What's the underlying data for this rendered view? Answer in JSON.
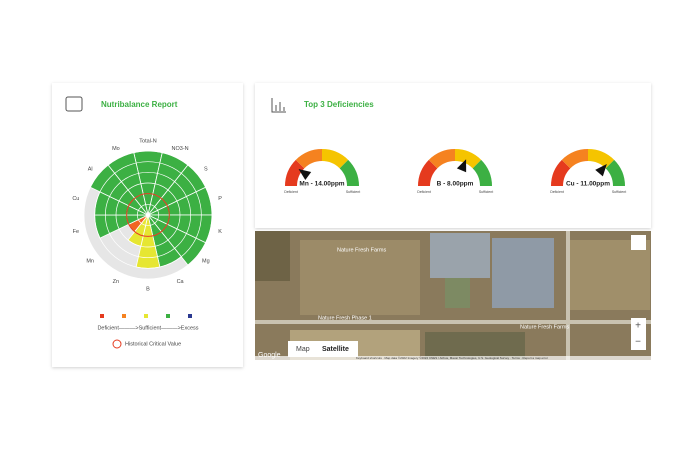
{
  "nutribalance": {
    "title": "Nutribalance Report",
    "rings": 6,
    "nutrients": [
      {
        "name": "Total-N",
        "level": 6,
        "color": "#3cb043"
      },
      {
        "name": "NO3-N",
        "level": 6,
        "color": "#3cb043"
      },
      {
        "name": "S",
        "level": 6,
        "color": "#3cb043"
      },
      {
        "name": "P",
        "level": 6,
        "color": "#3cb043"
      },
      {
        "name": "K",
        "level": 6,
        "color": "#3cb043"
      },
      {
        "name": "Mg",
        "level": 6,
        "color": "#3cb043"
      },
      {
        "name": "Ca",
        "level": 5,
        "color": "#3cb043"
      },
      {
        "name": "B",
        "level": 5,
        "color": "#e6e632"
      },
      {
        "name": "Zn",
        "level": 3,
        "color": "#e6e632"
      },
      {
        "name": "Mn",
        "level": 2,
        "color": "#f26522"
      },
      {
        "name": "Fe",
        "level": 5,
        "color": "#3cb043"
      },
      {
        "name": "Cu",
        "level": 5,
        "color": "#3cb043"
      },
      {
        "name": "Al",
        "level": 6,
        "color": "#3cb043"
      },
      {
        "name": "Mo",
        "level": 6,
        "color": "#3cb043"
      }
    ],
    "legend": {
      "colors": [
        "#e53a1e",
        "#f58220",
        "#e6e632",
        "#3cb043",
        "#2b3990"
      ],
      "scale": "Deficient———>Sufficient———>Excess",
      "critical": "Historical Critical Value"
    }
  },
  "deficiencies": {
    "title": "Top 3 Deficiencies",
    "low": "Deficient",
    "high": "Sufficient",
    "gauges": [
      {
        "label": "Mn - 14.00ppm"
      },
      {
        "label": "B - 8.00ppm"
      },
      {
        "label": "Cu - 11.00ppm"
      }
    ]
  },
  "map": {
    "places": [
      "Nature Fresh Farms",
      "Nature Fresh Phase 1",
      "Nature Fresh Farms"
    ],
    "buttons": [
      "Map",
      "Satellite"
    ],
    "logo": "Google",
    "attribution": "Keyboard shortcuts · Map data ©2022 Imagery ©2022 CNES / Airbus, Maxar Technologies, U.S. Geological Survey · Terms · Report a map error"
  }
}
